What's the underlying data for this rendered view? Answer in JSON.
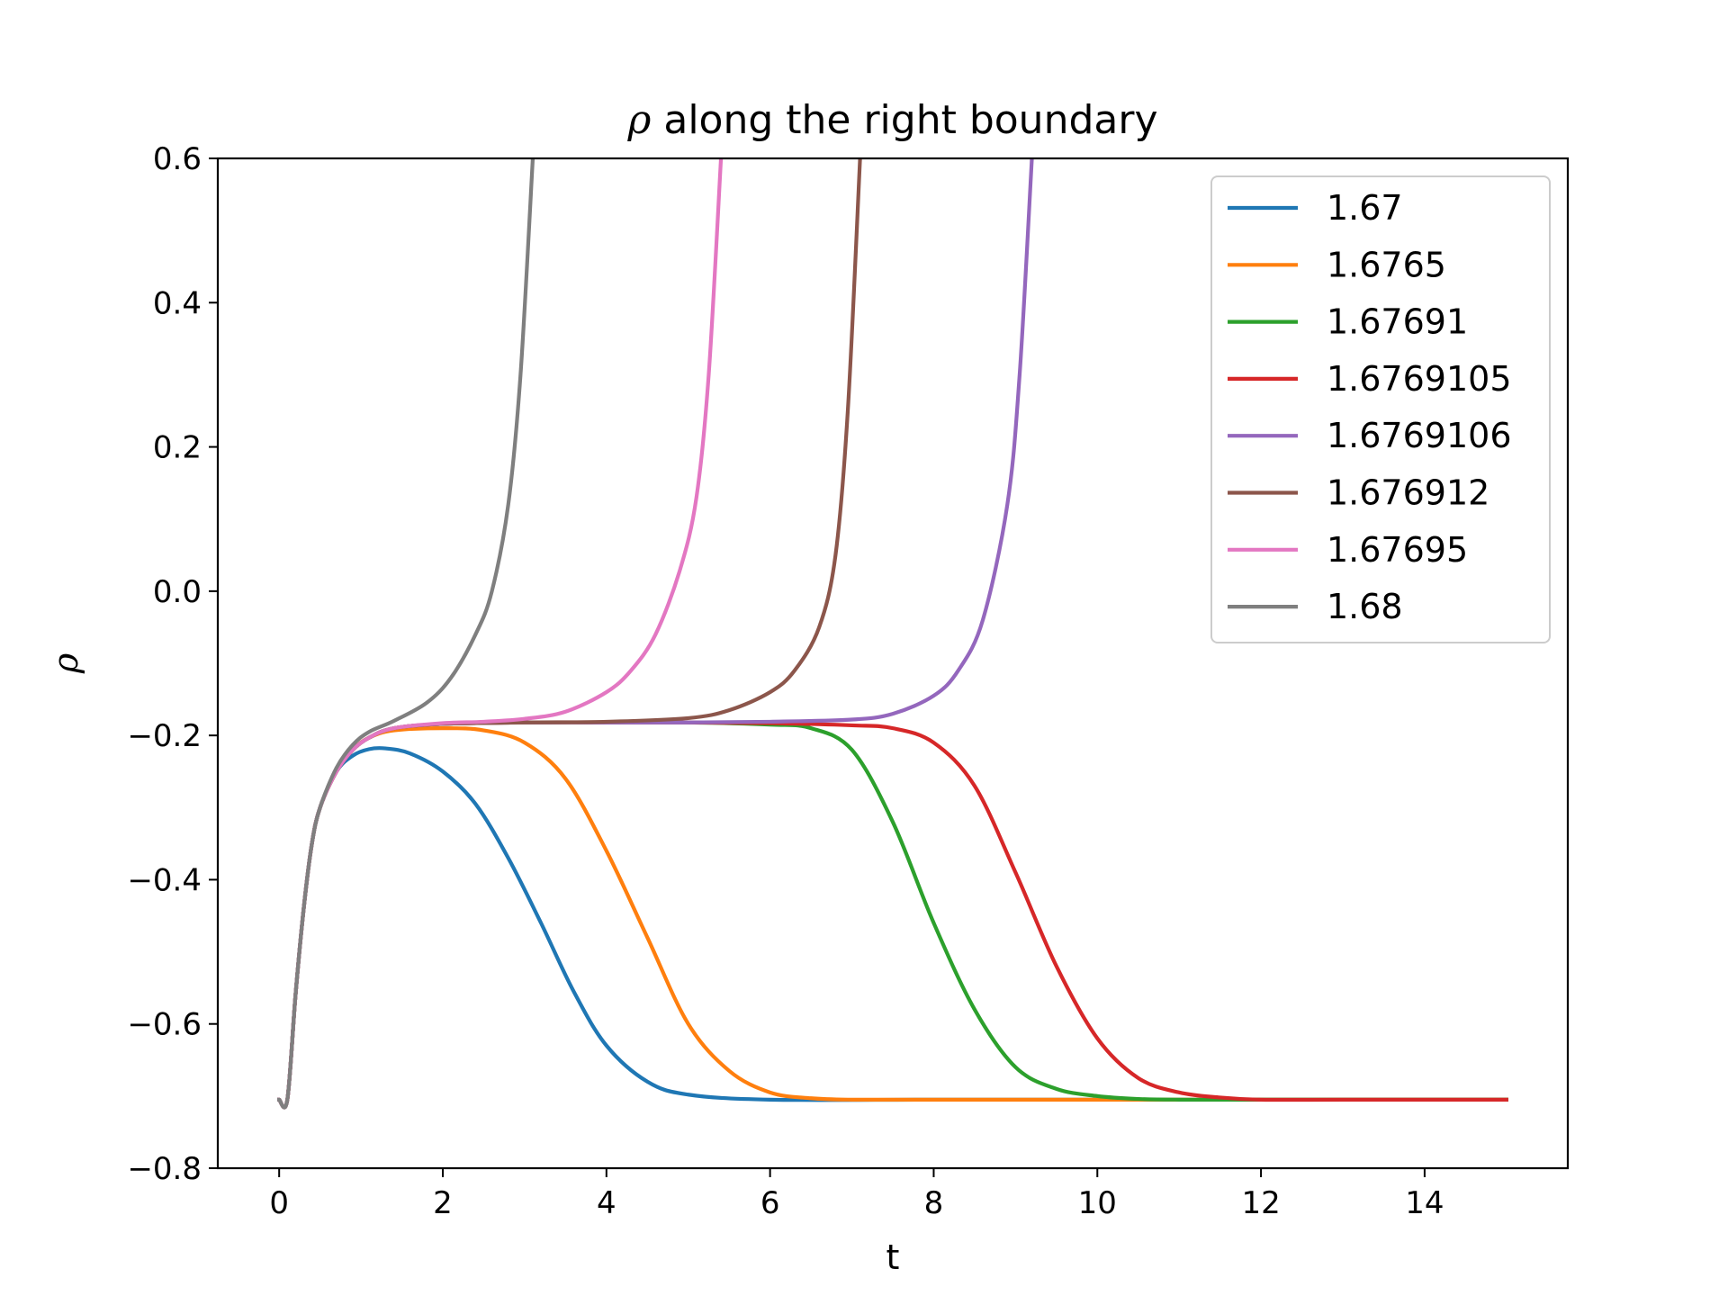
{
  "chart_data": {
    "type": "line",
    "title_symbol": "ρ",
    "title_rest": " along the right boundary",
    "xlabel": "t",
    "ylabel": "ρ",
    "xlim": [
      -0.75,
      15.75
    ],
    "ylim": [
      -0.8,
      0.6
    ],
    "xticks": [
      0,
      2,
      4,
      6,
      8,
      10,
      12,
      14
    ],
    "yticks": [
      -0.8,
      -0.6,
      -0.4,
      -0.2,
      0.0,
      0.2,
      0.4,
      0.6
    ],
    "xtick_labels": [
      "0",
      "2",
      "4",
      "6",
      "8",
      "10",
      "12",
      "14"
    ],
    "ytick_labels": [
      "−0.8",
      "−0.6",
      "−0.4",
      "−0.2",
      "0.0",
      "0.2",
      "0.4",
      "0.6"
    ],
    "legend_position": "top-right",
    "grid": false,
    "series": [
      {
        "name": "1.67",
        "color": "#1f77b4",
        "x": [
          0,
          0.1,
          0.2,
          0.3,
          0.4,
          0.5,
          0.7,
          0.9,
          1.1,
          1.3,
          1.6,
          2.0,
          2.4,
          2.8,
          3.2,
          3.6,
          4.0,
          4.5,
          5.0,
          6.0,
          8.0,
          10.0,
          12.0,
          15.0
        ],
        "y": [
          -0.705,
          -0.705,
          -0.56,
          -0.44,
          -0.35,
          -0.3,
          -0.25,
          -0.228,
          -0.219,
          -0.218,
          -0.225,
          -0.25,
          -0.295,
          -0.37,
          -0.46,
          -0.555,
          -0.63,
          -0.68,
          -0.698,
          -0.705,
          -0.705,
          -0.705,
          -0.705,
          -0.705
        ]
      },
      {
        "name": "1.6765",
        "color": "#ff7f0e",
        "x": [
          0,
          0.1,
          0.2,
          0.3,
          0.4,
          0.5,
          0.7,
          0.9,
          1.1,
          1.4,
          2.0,
          2.5,
          3.0,
          3.5,
          4.0,
          4.5,
          5.0,
          5.5,
          6.0,
          6.5,
          7.0,
          8.0,
          10.0,
          12.0,
          15.0
        ],
        "y": [
          -0.705,
          -0.705,
          -0.56,
          -0.44,
          -0.35,
          -0.3,
          -0.25,
          -0.22,
          -0.203,
          -0.193,
          -0.19,
          -0.193,
          -0.21,
          -0.26,
          -0.36,
          -0.48,
          -0.6,
          -0.665,
          -0.695,
          -0.703,
          -0.705,
          -0.705,
          -0.705,
          -0.705,
          -0.705
        ]
      },
      {
        "name": "1.67691",
        "color": "#2ca02c",
        "x": [
          0,
          0.1,
          0.2,
          0.3,
          0.4,
          0.5,
          0.7,
          0.9,
          1.1,
          1.4,
          2.0,
          3.0,
          4.0,
          5.0,
          6.0,
          6.5,
          7.0,
          7.5,
          8.0,
          8.5,
          9.0,
          9.5,
          10.0,
          10.5,
          11.0,
          12.0,
          15.0
        ],
        "y": [
          -0.705,
          -0.705,
          -0.56,
          -0.44,
          -0.35,
          -0.3,
          -0.25,
          -0.22,
          -0.203,
          -0.19,
          -0.184,
          -0.182,
          -0.182,
          -0.182,
          -0.185,
          -0.19,
          -0.22,
          -0.32,
          -0.46,
          -0.58,
          -0.66,
          -0.69,
          -0.7,
          -0.704,
          -0.705,
          -0.705,
          -0.705
        ]
      },
      {
        "name": "1.6769105",
        "color": "#d62728",
        "x": [
          0,
          0.1,
          0.2,
          0.3,
          0.4,
          0.5,
          0.7,
          0.9,
          1.1,
          1.4,
          2.0,
          3.0,
          4.0,
          5.0,
          6.0,
          7.0,
          7.5,
          8.0,
          8.5,
          9.0,
          9.5,
          10.0,
          10.5,
          11.0,
          11.5,
          12.0,
          13.0,
          15.0
        ],
        "y": [
          -0.705,
          -0.705,
          -0.56,
          -0.44,
          -0.35,
          -0.3,
          -0.25,
          -0.22,
          -0.203,
          -0.19,
          -0.184,
          -0.182,
          -0.182,
          -0.182,
          -0.183,
          -0.186,
          -0.19,
          -0.21,
          -0.27,
          -0.39,
          -0.52,
          -0.62,
          -0.675,
          -0.695,
          -0.702,
          -0.705,
          -0.705,
          -0.705
        ]
      },
      {
        "name": "1.6769106",
        "color": "#9467bd",
        "x": [
          0,
          0.1,
          0.2,
          0.3,
          0.4,
          0.5,
          0.7,
          0.9,
          1.1,
          1.4,
          2.0,
          3.0,
          4.0,
          5.0,
          6.0,
          7.0,
          7.5,
          8.0,
          8.3,
          8.6,
          8.9,
          9.05,
          9.2
        ],
        "y": [
          -0.705,
          -0.705,
          -0.56,
          -0.44,
          -0.35,
          -0.3,
          -0.25,
          -0.22,
          -0.203,
          -0.19,
          -0.184,
          -0.182,
          -0.182,
          -0.182,
          -0.181,
          -0.178,
          -0.17,
          -0.145,
          -0.11,
          -0.04,
          0.12,
          0.3,
          0.6
        ]
      },
      {
        "name": "1.676912",
        "color": "#8c564b",
        "x": [
          0,
          0.1,
          0.2,
          0.3,
          0.4,
          0.5,
          0.7,
          0.9,
          1.1,
          1.4,
          2.0,
          3.0,
          4.0,
          5.0,
          5.5,
          6.0,
          6.3,
          6.6,
          6.8,
          6.95,
          7.1
        ],
        "y": [
          -0.705,
          -0.705,
          -0.56,
          -0.44,
          -0.35,
          -0.3,
          -0.25,
          -0.22,
          -0.203,
          -0.19,
          -0.184,
          -0.182,
          -0.181,
          -0.176,
          -0.165,
          -0.14,
          -0.11,
          -0.05,
          0.05,
          0.25,
          0.6
        ]
      },
      {
        "name": "1.67695",
        "color": "#e377c2",
        "x": [
          0,
          0.1,
          0.2,
          0.3,
          0.4,
          0.5,
          0.7,
          0.9,
          1.1,
          1.4,
          2.0,
          2.5,
          3.0,
          3.5,
          4.0,
          4.3,
          4.6,
          4.9,
          5.1,
          5.25,
          5.4
        ],
        "y": [
          -0.705,
          -0.705,
          -0.56,
          -0.44,
          -0.35,
          -0.3,
          -0.25,
          -0.22,
          -0.203,
          -0.19,
          -0.183,
          -0.181,
          -0.177,
          -0.167,
          -0.14,
          -0.11,
          -0.06,
          0.03,
          0.13,
          0.3,
          0.6
        ]
      },
      {
        "name": "1.68",
        "color": "#7f7f7f",
        "x": [
          0,
          0.1,
          0.2,
          0.3,
          0.4,
          0.5,
          0.7,
          0.9,
          1.1,
          1.4,
          1.8,
          2.1,
          2.4,
          2.6,
          2.8,
          2.95,
          3.1
        ],
        "y": [
          -0.705,
          -0.705,
          -0.56,
          -0.44,
          -0.35,
          -0.3,
          -0.245,
          -0.213,
          -0.195,
          -0.18,
          -0.155,
          -0.12,
          -0.06,
          0.0,
          0.12,
          0.3,
          0.6
        ]
      }
    ]
  }
}
